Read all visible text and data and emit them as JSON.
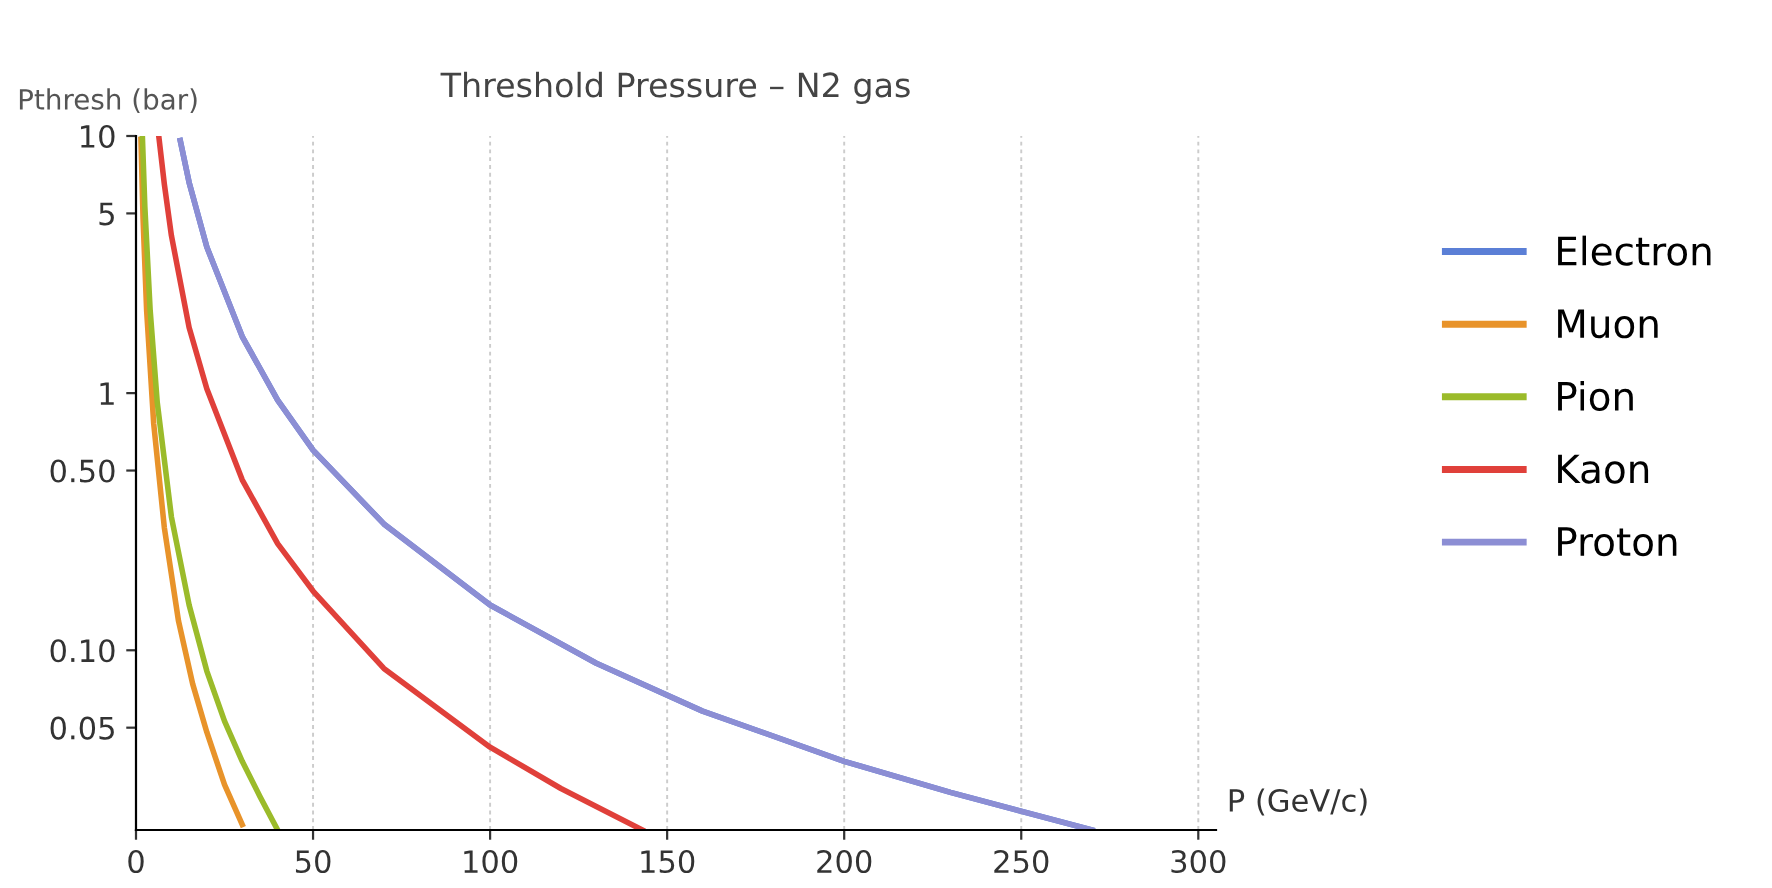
{
  "chart_data": {
    "type": "line",
    "title": "Threshold Pressure – N2 gas",
    "xlabel": "P (GeV/c)",
    "ylabel": "Pthresh (bar)",
    "log": "y",
    "xlim": [
      0,
      305
    ],
    "ylim": [
      0.02,
      10
    ],
    "xticks": [
      0,
      50,
      100,
      150,
      200,
      250,
      300
    ],
    "yticks": [
      {
        "value": 0.05,
        "label": "0.05"
      },
      {
        "value": 0.1,
        "label": "0.10"
      },
      {
        "value": 0.5,
        "label": "0.50"
      },
      1,
      5,
      10
    ],
    "grid": "x",
    "legend": "right",
    "marker": "none",
    "line_style": "solid",
    "series": [
      {
        "name": "Electron",
        "color": "#5b7fd6",
        "x": [
          12.5,
          15,
          20,
          30,
          40,
          50,
          70,
          100,
          130,
          160,
          200,
          230,
          270
        ],
        "values": [
          9.6,
          6.6,
          3.7,
          1.66,
          0.94,
          0.6,
          0.31,
          0.15,
          0.089,
          0.058,
          0.037,
          0.028,
          0.02
        ]
      },
      {
        "name": "Muon",
        "color": "#e8932a",
        "x": [
          1.4,
          2,
          3,
          5,
          8,
          12,
          16,
          20,
          25,
          30
        ],
        "values": [
          9.7,
          4.75,
          2.1,
          0.76,
          0.3,
          0.13,
          0.074,
          0.048,
          0.03,
          0.021
        ]
      },
      {
        "name": "Pion",
        "color": "#9bbb2a",
        "x": [
          1.8,
          2.5,
          4,
          6,
          10,
          15,
          20,
          25,
          30,
          35,
          40
        ],
        "values": [
          10,
          5.3,
          2.1,
          0.92,
          0.33,
          0.15,
          0.083,
          0.053,
          0.037,
          0.027,
          0.02
        ]
      },
      {
        "name": "Kaon",
        "color": "#e0403a",
        "x": [
          6.5,
          8,
          10,
          15,
          20,
          30,
          40,
          50,
          70,
          100,
          120,
          143
        ],
        "values": [
          9.8,
          6.5,
          4.1,
          1.8,
          1.04,
          0.46,
          0.26,
          0.17,
          0.085,
          0.042,
          0.029,
          0.02
        ]
      },
      {
        "name": "Proton",
        "color": "#8c8ed4",
        "x": [
          12.5,
          15,
          20,
          30,
          40,
          50,
          70,
          100,
          130,
          160,
          200,
          230,
          270
        ],
        "values": [
          9.6,
          6.6,
          3.7,
          1.66,
          0.94,
          0.6,
          0.31,
          0.15,
          0.089,
          0.058,
          0.037,
          0.028,
          0.02
        ]
      }
    ]
  }
}
